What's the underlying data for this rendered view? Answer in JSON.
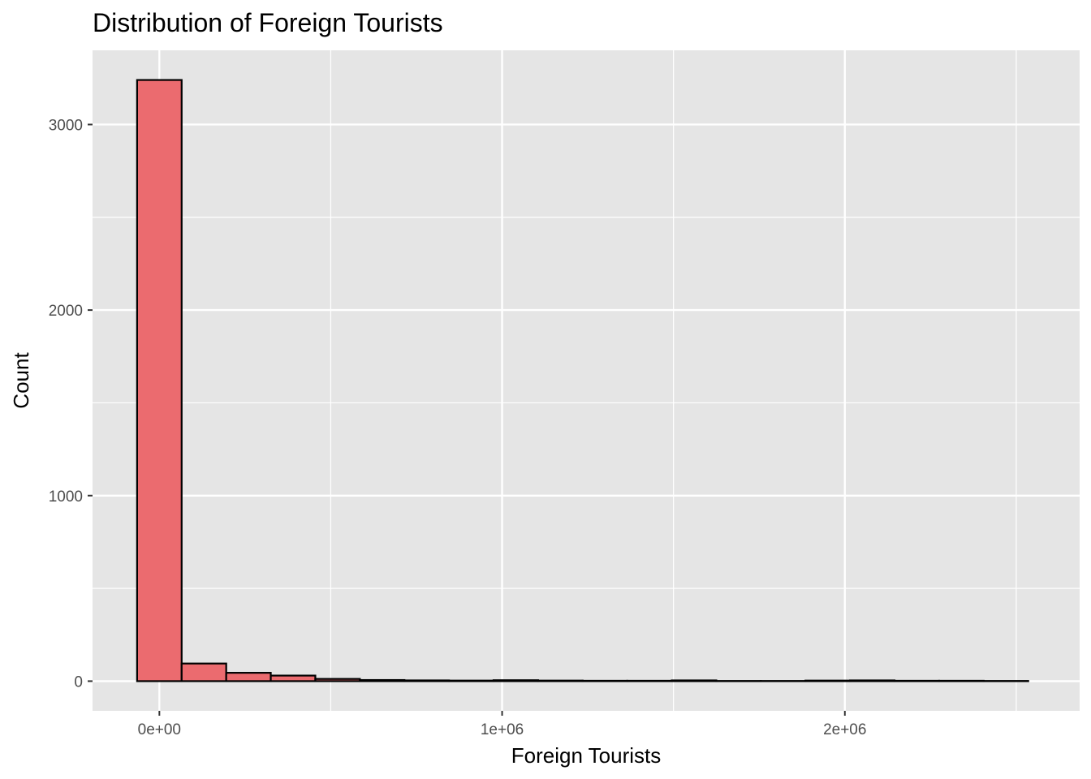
{
  "chart_data": {
    "type": "bar",
    "title": "Distribution of Foreign Tourists",
    "xlabel": "Foreign Tourists",
    "ylabel": "Count",
    "x_tick_labels": [
      {
        "value": 0,
        "label": "0e+00"
      },
      {
        "value": 1000000,
        "label": "1e+06"
      },
      {
        "value": 2000000,
        "label": "2e+06"
      }
    ],
    "y_tick_labels": [
      {
        "value": 0,
        "label": "0"
      },
      {
        "value": 1000,
        "label": "1000"
      },
      {
        "value": 2000,
        "label": "2000"
      },
      {
        "value": 3000,
        "label": "3000"
      }
    ],
    "xlim": [
      -195000,
      2685000
    ],
    "ylim": [
      -160,
      3400
    ],
    "bin_width": 130000,
    "bin_starts": [
      -65000,
      65000,
      195000,
      325000,
      455000,
      585000,
      715000,
      845000,
      975000,
      1105000,
      1235000,
      1365000,
      1495000,
      1625000,
      1755000,
      1885000,
      2015000,
      2145000,
      2275000,
      2405000
    ],
    "values": [
      3240,
      95,
      45,
      30,
      12,
      6,
      4,
      3,
      5,
      3,
      2,
      2,
      4,
      1,
      1,
      3,
      4,
      2,
      2,
      1
    ],
    "grid": true,
    "legend": "none",
    "colors": {
      "bar_fill": "#EB6B6F",
      "bar_stroke": "#000000",
      "panel_bg": "#E5E5E5",
      "grid": "#FFFFFF"
    }
  }
}
